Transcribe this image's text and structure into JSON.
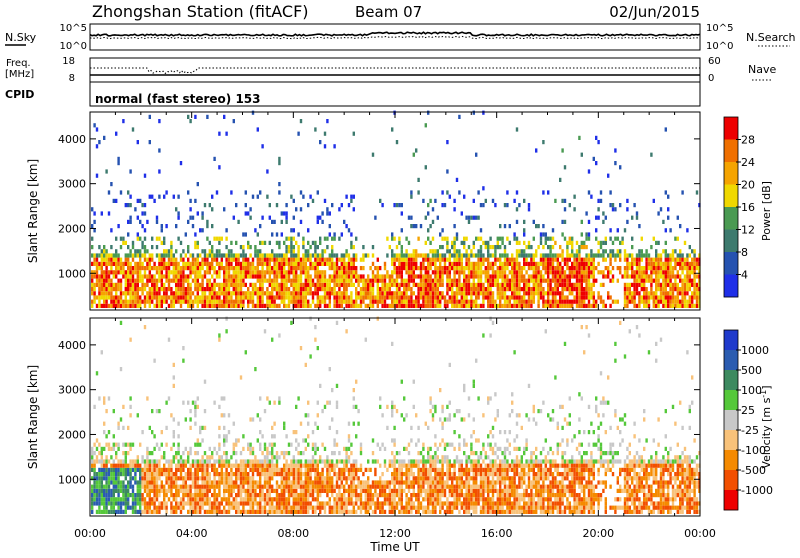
{
  "header": {
    "station": "Zhongshan Station (fitACF)",
    "beam": "Beam 07",
    "date": "02/Jun/2015"
  },
  "noise_panel": {
    "left_label": "N.Sky",
    "right_label": "N.Search",
    "ticks": [
      "10^5",
      "10^0"
    ]
  },
  "freq_panel": {
    "left_label": "Freq.",
    "left_unit": "[MHz]",
    "left_ticks": [
      "18",
      "8"
    ],
    "right_label": "Nave",
    "right_ticks": [
      "60",
      "0"
    ]
  },
  "cpid": {
    "label": "CPID",
    "text": "normal (fast stereo) 153"
  },
  "colors": {
    "power": [
      "#1f2fe8",
      "#2552b0",
      "#3d7a6e",
      "#4a9a52",
      "#f0d800",
      "#f5a400",
      "#f07000",
      "#ee0000"
    ],
    "velocity": [
      "#ee0000",
      "#f24f00",
      "#f58a00",
      "#f8c27a",
      "#c8c8c8",
      "#55c83a",
      "#3d8a60",
      "#2b5cb0",
      "#1f3acc"
    ]
  },
  "chart_data": [
    {
      "type": "heatmap",
      "name": "power",
      "ylabel": "Slant Range [km]",
      "yticks": [
        1000,
        2000,
        3000,
        4000
      ],
      "ylim": [
        180,
        4600
      ],
      "xlabel": "Time UT",
      "xticks": [
        "00:00",
        "04:00",
        "08:00",
        "12:00",
        "16:00",
        "20:00",
        "00:00"
      ],
      "xlim_hours": [
        0,
        24
      ],
      "colorbar_label": "Power [dB]",
      "colorbar_ticks": [
        "4",
        "8",
        "12",
        "16",
        "20",
        "24",
        "28"
      ],
      "colorbar_range": [
        0,
        32
      ]
    },
    {
      "type": "heatmap",
      "name": "velocity",
      "ylabel": "Slant Range [km]",
      "yticks": [
        1000,
        2000,
        3000,
        4000
      ],
      "ylim": [
        180,
        4600
      ],
      "xlabel": "Time UT",
      "xticks": [
        "00:00",
        "04:00",
        "08:00",
        "12:00",
        "16:00",
        "20:00",
        "00:00"
      ],
      "xlim_hours": [
        0,
        24
      ],
      "colorbar_label": "Velocity [m s",
      "colorbar_label_sup": "-1",
      "colorbar_label_end": "]",
      "colorbar_ticks": [
        "1000",
        "500",
        "100",
        "25",
        "-25",
        "-100",
        "-500",
        "-1000"
      ]
    }
  ]
}
